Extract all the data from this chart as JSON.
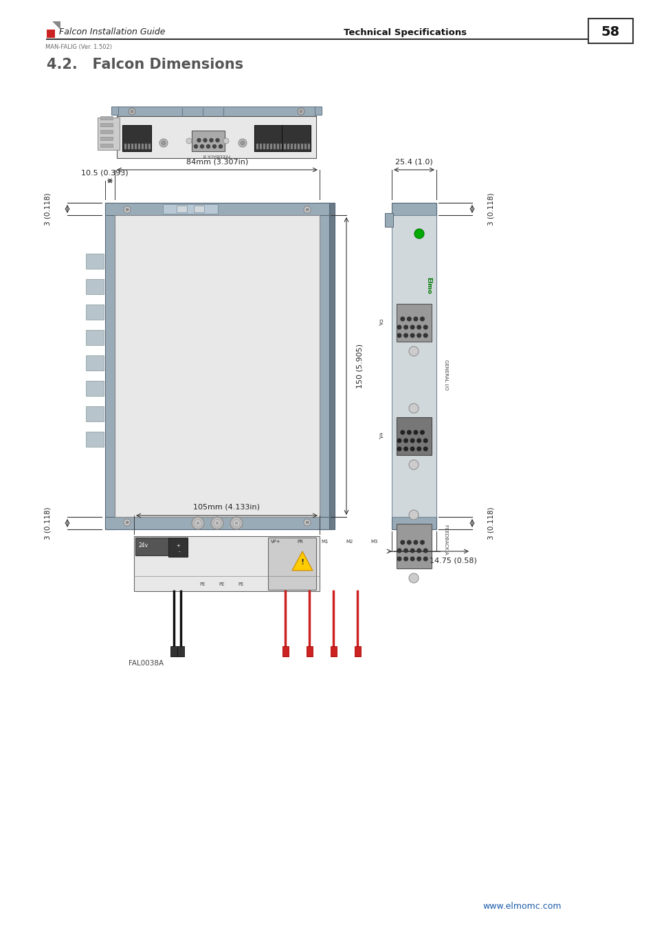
{
  "title": "4.2.   Falcon Dimensions",
  "header_left": "Falcon Installation Guide",
  "header_right": "Technical Specifications",
  "header_sub": "MAN-FALIG (Ver. 1.502)",
  "page_num": "58",
  "footer": "www.elmomc.com",
  "dim_84mm": "84mm (3.307in)",
  "dim_105mm": "105mm (4.133in)",
  "dim_150": "150 (5.905)",
  "dim_10_5": "10.5 (0.393)",
  "dim_3_left_top": "3 (0.118)",
  "dim_3_left_bot": "3 (0.118)",
  "dim_25_4": "25.4 (1.0)",
  "dim_3_right_top": "3 (0.118)",
  "dim_3_right_bot": "3 (0.118)",
  "dim_14_75": "14.75 (0.58)",
  "label_fal0038a": "FAL0038A",
  "color_body": "#e8e8e8",
  "color_strip": "#9aabb8",
  "color_strip_dark": "#7a8fa0",
  "color_dark_strip": "#555566",
  "color_fin": "#b8c4cc",
  "color_connector_dark": "#444444",
  "color_connector_gray": "#888888",
  "color_screw": "#bbbbbb",
  "footer_color": "#1a5ba8"
}
